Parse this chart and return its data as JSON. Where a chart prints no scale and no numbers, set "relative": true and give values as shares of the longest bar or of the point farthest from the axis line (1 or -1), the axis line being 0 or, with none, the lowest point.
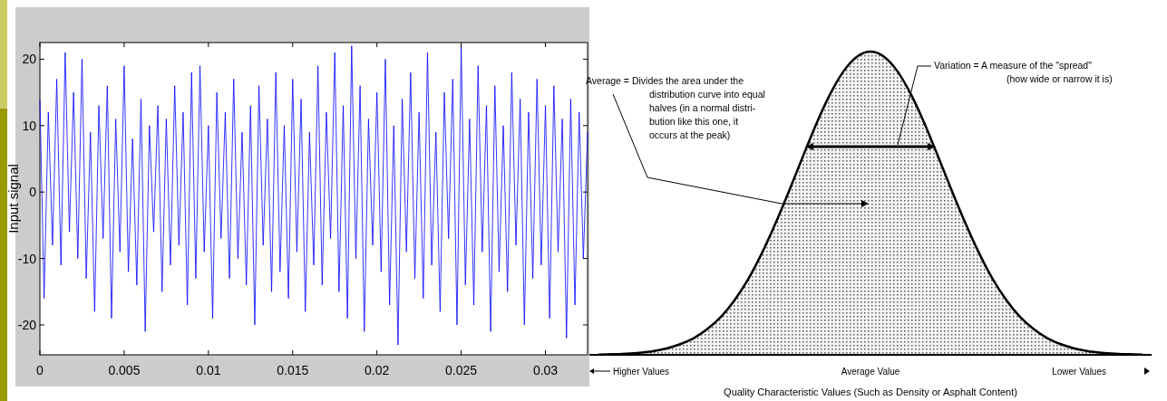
{
  "chart_data": [
    {
      "type": "line",
      "ylabel": "Input signal",
      "xlim": [
        0,
        0.0325
      ],
      "ylim": [
        -24.5,
        22.5
      ],
      "xticks": [
        0,
        0.005,
        0.01,
        0.015,
        0.02,
        0.025,
        0.03
      ],
      "yticks": [
        -20,
        -10,
        0,
        10,
        20
      ],
      "grid": false,
      "series": [
        {
          "color": "#0000ff",
          "x": [
            0,
            0.00025,
            0.0005,
            0.00075,
            0.001,
            0.00125,
            0.0015,
            0.00175,
            0.002,
            0.00225,
            0.0025,
            0.00275,
            0.003,
            0.00325,
            0.0035,
            0.00375,
            0.004,
            0.00425,
            0.0045,
            0.00475,
            0.005,
            0.00525,
            0.0055,
            0.00575,
            0.006,
            0.00625,
            0.0065,
            0.00675,
            0.007,
            0.00725,
            0.0075,
            0.00775,
            0.008,
            0.00825,
            0.0085,
            0.00875,
            0.009,
            0.00925,
            0.0095,
            0.00975,
            0.01,
            0.01025,
            0.0105,
            0.01075,
            0.011,
            0.01125,
            0.0115,
            0.01175,
            0.012,
            0.01225,
            0.0125,
            0.01275,
            0.013,
            0.01325,
            0.0135,
            0.01375,
            0.014,
            0.01425,
            0.0145,
            0.01475,
            0.015,
            0.01525,
            0.0155,
            0.01575,
            0.016,
            0.01625,
            0.0165,
            0.01675,
            0.017,
            0.01725,
            0.0175,
            0.01775,
            0.018,
            0.01825,
            0.0185,
            0.01875,
            0.019,
            0.01925,
            0.0195,
            0.01975,
            0.02,
            0.02025,
            0.0205,
            0.02075,
            0.021,
            0.02125,
            0.0215,
            0.02175,
            0.022,
            0.02225,
            0.0225,
            0.02275,
            0.023,
            0.02325,
            0.0235,
            0.02375,
            0.024,
            0.02425,
            0.0245,
            0.02475,
            0.025,
            0.02525,
            0.0255,
            0.02575,
            0.026,
            0.02625,
            0.0265,
            0.02675,
            0.027,
            0.02725,
            0.0275,
            0.02775,
            0.028,
            0.02825,
            0.0285,
            0.02875,
            0.029,
            0.02925,
            0.0295,
            0.02975,
            0.03,
            0.03025,
            0.0305,
            0.03075,
            0.031,
            0.03125,
            0.0315,
            0.03175,
            0.032,
            0.03225,
            0.0325
          ],
          "values": [
            14,
            -16,
            12,
            -8,
            17,
            -11,
            21,
            -6,
            15,
            -10,
            20,
            -13,
            9,
            -18,
            13,
            -7,
            16,
            -19,
            11,
            -9,
            19,
            -12,
            8,
            -14,
            14,
            -21,
            10,
            -6,
            13,
            -15,
            11,
            -11,
            16,
            -8,
            12,
            -17,
            18,
            -13,
            19,
            -9,
            10,
            -19,
            15,
            -7,
            12,
            -13,
            17,
            -10,
            9,
            -14,
            13,
            -20,
            16,
            -8,
            11,
            -15,
            18,
            -12,
            10,
            -16,
            17,
            -9,
            14,
            -18,
            9,
            -11,
            19,
            -14,
            12,
            -7,
            21,
            -15,
            13,
            -19,
            22,
            -10,
            16,
            -21,
            11,
            -8,
            15,
            -12,
            20,
            -17,
            10,
            -23,
            14,
            -9,
            18,
            -13,
            12,
            -16,
            21,
            -11,
            9,
            -18,
            15,
            -7,
            17,
            -20,
            22,
            -14,
            11,
            -17,
            19,
            -9,
            13,
            -21,
            16,
            -12,
            10,
            -15,
            18,
            -8,
            14,
            -20,
            12,
            -13,
            17,
            -11,
            13,
            -19,
            16,
            -9,
            11,
            -22,
            14,
            -17,
            12,
            -10,
            9
          ]
        }
      ]
    },
    {
      "type": "area",
      "relative": true,
      "xlabel": "Quality Characteristic Values (Such as Density or Asphalt Content)",
      "categories": [
        null,
        null,
        null,
        null,
        null,
        null,
        null,
        null,
        null,
        null,
        null,
        null,
        null,
        null,
        null,
        null,
        null,
        null,
        null,
        null,
        null,
        null,
        null,
        null,
        null,
        null,
        null,
        null,
        null,
        null,
        null,
        null,
        null,
        null,
        null,
        null,
        null,
        null,
        null,
        null,
        null
      ],
      "annotations": [
        "Average = Divides the area under the\ndistribution curve into equal\nhalves (in a normal distri-\nbution like this one, it\noccurs at the peak)",
        "Variation = A measure of the \"spread\"\n(how wide or narrow it is)",
        "Higher Values",
        "Average Value",
        "Lower Values"
      ],
      "series": [
        {
          "color": "#000000",
          "values": [
            0.001,
            0.002,
            0.004,
            0.007,
            0.012,
            0.021,
            0.035,
            0.055,
            0.085,
            0.125,
            0.18,
            0.249,
            0.334,
            0.432,
            0.539,
            0.651,
            0.76,
            0.857,
            0.934,
            0.983,
            1,
            0.983,
            0.934,
            0.857,
            0.76,
            0.651,
            0.539,
            0.432,
            0.334,
            0.249,
            0.18,
            0.125,
            0.085,
            0.055,
            0.035,
            0.021,
            0.012,
            0.007,
            0.004,
            0.002,
            0.001
          ]
        }
      ]
    }
  ]
}
